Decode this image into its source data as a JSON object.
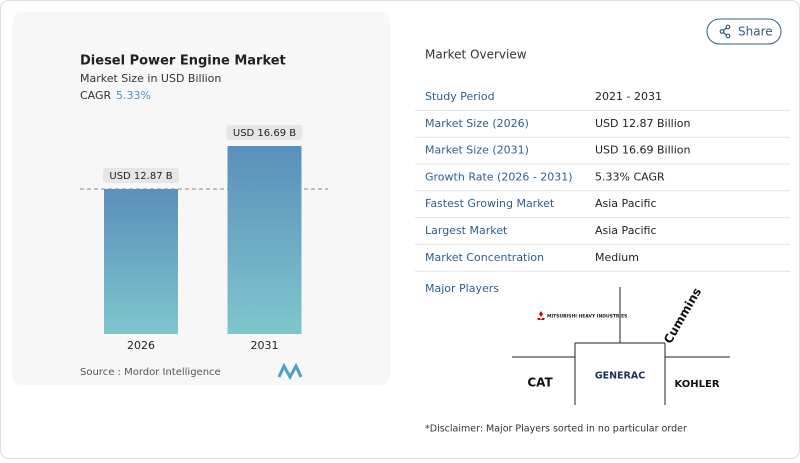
{
  "share": "Share",
  "chart_data": {
    "type": "bar",
    "title": "Diesel Power Engine Market",
    "subtitle": "Market Size in USD Billion",
    "cagr_label": "CAGR",
    "cagr": "5.33%",
    "categories": [
      "2026",
      "2031"
    ],
    "values": [
      12.87,
      16.69
    ],
    "value_labels": [
      "USD 12.87 B",
      "USD 16.69 B"
    ],
    "colors": [
      "#5a8fba",
      "#80c6cd"
    ],
    "source": "Source :  Mordor Intelligence"
  },
  "overview": {
    "title": "Market Overview",
    "rows": [
      [
        "Study Period",
        "2021 - 2031"
      ],
      [
        "Market Size (2026)",
        "USD 12.87 Billion"
      ],
      [
        "Market Size (2031)",
        "USD 16.69 Billion"
      ],
      [
        "Growth Rate (2026 - 2031)",
        "5.33% CAGR"
      ],
      [
        "Fastest Growing Market",
        "Asia Pacific"
      ],
      [
        "Largest Market",
        "Asia Pacific"
      ],
      [
        "Market Concentration",
        "Medium"
      ]
    ]
  },
  "players": {
    "title": "Major Players",
    "logos": [
      "MITSUBISHI HEAVY INDUSTRIES",
      "Cummins",
      "CAT",
      "GENERAC",
      "KOHLER"
    ],
    "disclaimer": "*Disclaimer: Major Players sorted in no particular order"
  }
}
